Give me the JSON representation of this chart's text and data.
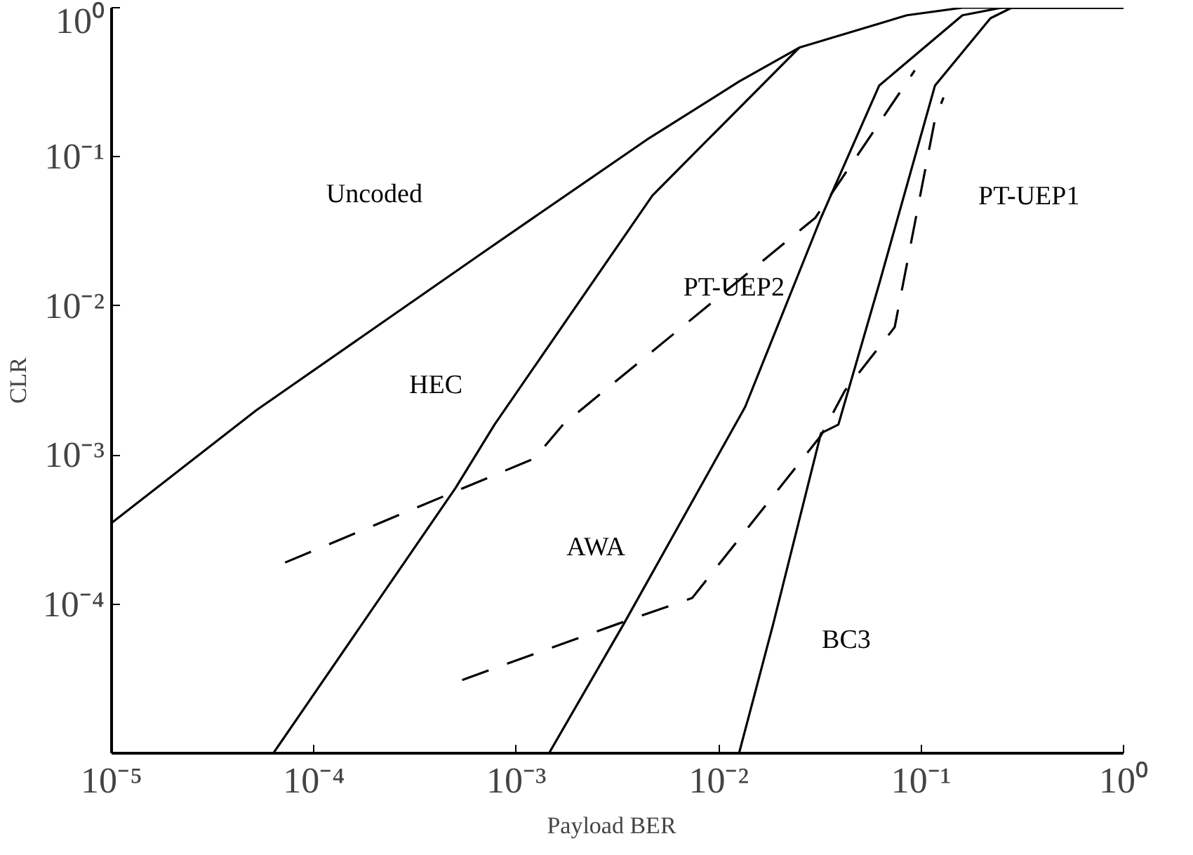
{
  "chart_data": {
    "type": "line",
    "xlabel": "Payload   BER",
    "ylabel": "CLR",
    "log": "xy",
    "grid": false,
    "legend": false,
    "marker": "none",
    "xlim": [
      1e-05,
      1
    ],
    "ylim": [
      1e-05,
      1
    ],
    "xticks": [
      {
        "value": 1e-05,
        "label": "10⁻⁵"
      },
      {
        "value": 0.0001,
        "label": "10⁻⁴"
      },
      {
        "value": 0.001,
        "label": "10⁻³"
      },
      {
        "value": 0.01,
        "label": "10⁻²"
      },
      {
        "value": 0.1,
        "label": "10⁻¹"
      },
      {
        "value": 1,
        "label": "10⁰"
      }
    ],
    "yticks": [
      {
        "value": 1e-05,
        "label": null
      },
      {
        "value": 0.0001,
        "label": "10⁻⁴"
      },
      {
        "value": 0.001,
        "label": "10⁻³"
      },
      {
        "value": 0.01,
        "label": "10⁻²"
      },
      {
        "value": 0.1,
        "label": "10⁻¹"
      },
      {
        "value": 1,
        "label": "10⁰"
      }
    ],
    "series": [
      {
        "name": "Uncoded",
        "color": "#000000",
        "line_style": "solid",
        "x": [
          1e-05,
          5.2e-05,
          0.00069,
          0.0044,
          0.0126,
          0.025,
          0.085,
          0.16,
          1
        ],
        "values": [
          0.00035,
          0.002,
          0.023,
          0.13,
          0.32,
          0.54,
          0.89,
          1,
          1
        ]
      },
      {
        "name": "HEC",
        "color": "#000000",
        "line_style": "solid",
        "x": [
          6.3e-05,
          0.0005,
          0.00078,
          0.0047,
          0.025
        ],
        "values": [
          1e-05,
          0.0006,
          0.0016,
          0.055,
          0.54
        ]
      },
      {
        "name": "AWA",
        "color": "#000000",
        "line_style": "solid",
        "x": [
          0.00145,
          0.0034,
          0.0135,
          0.032,
          0.062,
          0.16,
          0.25,
          1
        ],
        "values": [
          1e-05,
          7.4e-05,
          0.0021,
          0.039,
          0.3,
          0.89,
          1,
          1
        ]
      },
      {
        "name": "BC3",
        "color": "#000000",
        "line_style": "solid",
        "x": [
          0.0126,
          0.0186,
          0.032,
          0.039,
          0.062,
          0.117,
          0.22,
          0.28,
          1
        ],
        "values": [
          1e-05,
          7.4e-05,
          0.0014,
          0.0016,
          0.014,
          0.3,
          0.85,
          1,
          1
        ]
      },
      {
        "name": "PT-UEP2",
        "color": "#000000",
        "line_style": "dashed",
        "x": [
          7.2e-05,
          0.00123,
          0.0017,
          0.03,
          0.093
        ],
        "values": [
          0.00019,
          0.00095,
          0.0016,
          0.039,
          0.38
        ]
      },
      {
        "name": "PT-UEP1",
        "color": "#000000",
        "line_style": "dashed",
        "x": [
          0.00054,
          0.0032,
          0.0074,
          0.032,
          0.042,
          0.074,
          0.117,
          0.129
        ],
        "values": [
          3.1e-05,
          7.4e-05,
          0.00011,
          0.00135,
          0.0027,
          0.0072,
          0.178,
          0.25
        ]
      }
    ]
  }
}
